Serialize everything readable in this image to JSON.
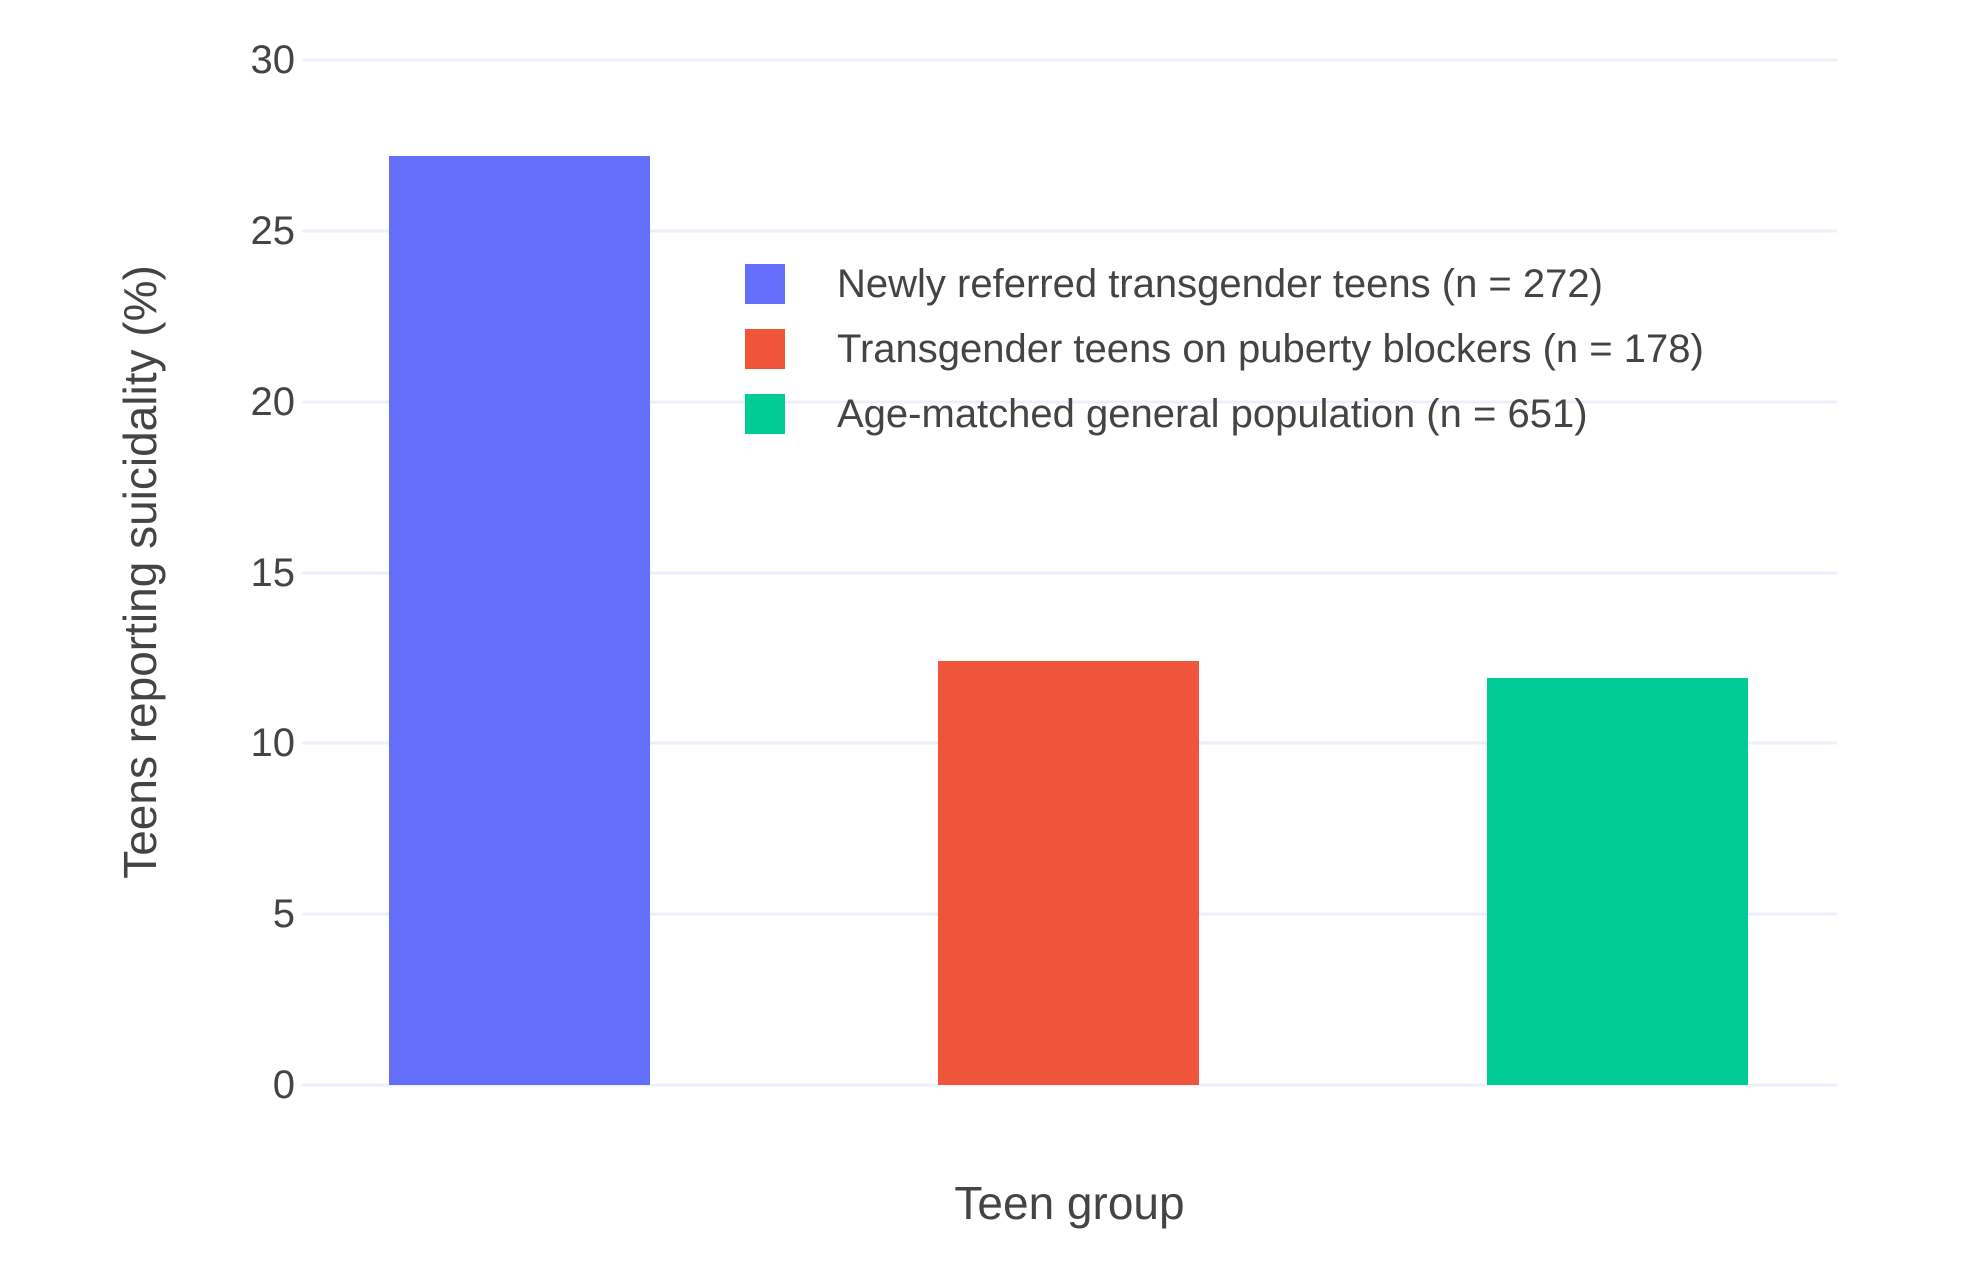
{
  "chart_data": {
    "type": "bar",
    "xlabel": "Teen group",
    "ylabel": "Teens reporting suicidality (%)",
    "categories": [
      "Newly referred transgender teens (n = 272)",
      "Transgender teens on puberty blockers (n = 178)",
      "Age-matched general population (n = 651)"
    ],
    "values": [
      27.2,
      12.4,
      11.9
    ],
    "colors": [
      "#636EFA",
      "#EF553B",
      "#00CC96"
    ],
    "ylim": [
      0,
      30
    ],
    "yticks": [
      0,
      5,
      10,
      15,
      20,
      25,
      30
    ],
    "grid": true,
    "x_tick_labels": [],
    "legend": {
      "position": "inside-top-center",
      "entries": [
        {
          "label": "Newly referred transgender teens (n = 272)",
          "color": "#636EFA"
        },
        {
          "label": "Transgender teens on puberty blockers (n = 178)",
          "color": "#EF553B"
        },
        {
          "label": "Age-matched general population (n = 651)",
          "color": "#00CC96"
        }
      ]
    }
  },
  "style": {
    "background": "#FFFFFF",
    "grid_color": "#EBF0F8",
    "text_color": "#444444"
  }
}
